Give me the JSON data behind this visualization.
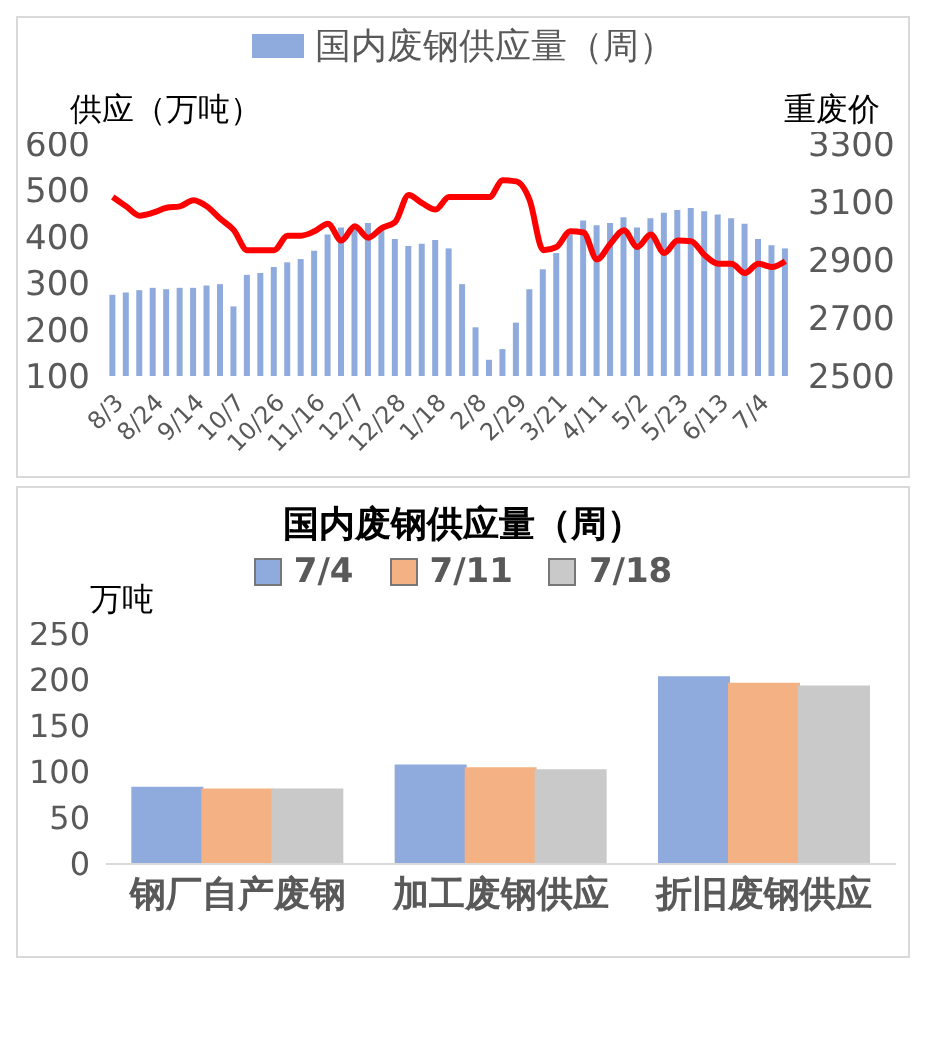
{
  "chart_data": [
    {
      "type": "bar",
      "categories": [
        "8/3",
        null,
        null,
        "8/24",
        null,
        null,
        "9/14",
        null,
        null,
        "10/7",
        null,
        null,
        "10/26",
        null,
        null,
        "11/16",
        null,
        null,
        "12/7",
        null,
        null,
        "12/28",
        null,
        null,
        "1/18",
        null,
        null,
        "2/8",
        null,
        null,
        "2/29",
        null,
        null,
        "3/21",
        null,
        null,
        "4/11",
        null,
        null,
        "5/2",
        null,
        null,
        "5/23",
        null,
        null,
        "6/13",
        null,
        null,
        "7/4",
        null,
        null
      ],
      "series": [
        {
          "name": "国内废钢供应量（周）",
          "color": "#8faadc",
          "values": [
            275,
            280,
            285,
            290,
            287,
            290,
            290,
            295,
            298,
            250,
            318,
            322,
            335,
            345,
            352,
            370,
            405,
            420,
            420,
            430,
            415,
            395,
            380,
            385,
            393,
            375,
            298,
            205,
            135,
            158,
            215,
            287,
            330,
            365,
            405,
            435,
            425,
            430,
            442,
            420,
            440,
            452,
            458,
            462,
            455,
            448,
            440,
            428,
            395,
            382,
            375
          ]
        },
        {
          "type": "line",
          "axis": "y2",
          "color": "#ff0000",
          "values": [
            3117,
            3085,
            3053,
            3063,
            3080,
            3085,
            3106,
            3085,
            3042,
            3003,
            2934,
            2934,
            2934,
            2984,
            2984,
            2999,
            3025,
            2967,
            3016,
            2977,
            3010,
            3031,
            3124,
            3096,
            3074,
            3117,
            3117,
            3117,
            3117,
            3175,
            3171,
            3106,
            2934,
            2945,
            2999,
            2995,
            2902,
            2956,
            3003,
            2945,
            2988,
            2924,
            2967,
            2965,
            2917,
            2887,
            2887,
            2855,
            2887,
            2876,
            2896
          ]
        }
      ],
      "ylabel": "供应（万吨）",
      "y2label": "重废价",
      "ylim": [
        100,
        600
      ],
      "yticks": [
        100,
        200,
        300,
        400,
        500,
        600
      ],
      "y2lim": [
        2500,
        3300
      ],
      "y2ticks": [
        2500,
        2700,
        2900,
        3100,
        3300
      ],
      "legend": "top"
    },
    {
      "type": "bar",
      "title": "国内废钢供应量（周）",
      "ylabel": "万吨",
      "categories": [
        "钢厂自产废钢",
        "加工废钢供应",
        "折旧废钢供应"
      ],
      "series": [
        {
          "name": "7/4",
          "color": "#8faadc",
          "values": [
            83,
            107,
            203
          ]
        },
        {
          "name": "7/11",
          "color": "#f4b183",
          "values": [
            81,
            104,
            196
          ]
        },
        {
          "name": "7/18",
          "color": "#c9c9c9",
          "values": [
            81,
            102,
            193
          ]
        }
      ],
      "ylim": [
        0,
        250
      ],
      "yticks": [
        0,
        50,
        100,
        150,
        200,
        250
      ],
      "legend": "top"
    }
  ]
}
